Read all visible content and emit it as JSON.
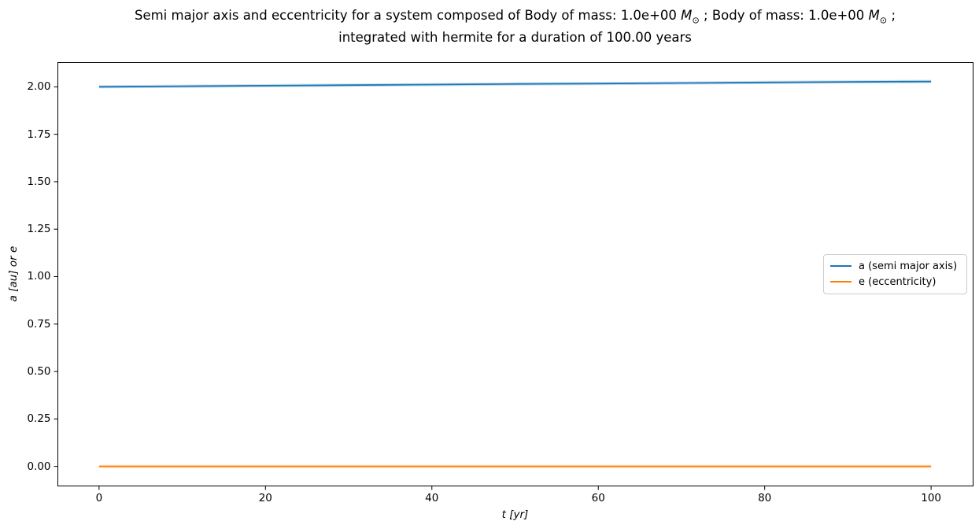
{
  "title": {
    "line1_prefix": "Semi major axis and eccentricity for a system composed of Body of mass: 1.0e+00 ",
    "mass_symbol": "M",
    "sun_subscript": "⊙",
    "line1_middle": " ; Body of mass: 1.0e+00 ",
    "line1_suffix": " ;",
    "line2": "integrated with hermite for a duration of 100.00 years"
  },
  "chart_data": {
    "type": "line",
    "title": "Semi major axis and eccentricity for a system composed of Body of mass: 1.0e+00 M⊙ ; Body of mass: 1.0e+00 M⊙ ; integrated with hermite for a duration of 100.00 years",
    "xlabel": "t [yr]",
    "ylabel": "a [au] or e",
    "xlim": [
      -5,
      105
    ],
    "ylim": [
      -0.101,
      2.13
    ],
    "grid": false,
    "x_ticks": {
      "values": [
        0,
        20,
        40,
        60,
        80,
        100
      ],
      "labels": [
        "0",
        "20",
        "40",
        "60",
        "80",
        "100"
      ]
    },
    "y_ticks": {
      "values": [
        0.0,
        0.25,
        0.5,
        0.75,
        1.0,
        1.25,
        1.5,
        1.75,
        2.0
      ],
      "labels": [
        "0.00",
        "0.25",
        "0.50",
        "0.75",
        "1.00",
        "1.25",
        "1.50",
        "1.75",
        "2.00"
      ]
    },
    "legend": {
      "position": "center right"
    },
    "series": [
      {
        "name": "a (semi major axis)",
        "color": "#1f77b4",
        "x": [
          0,
          10,
          20,
          30,
          40,
          50,
          60,
          70,
          80,
          90,
          100
        ],
        "y": [
          2.0,
          2.003,
          2.006,
          2.009,
          2.012,
          2.015,
          2.017,
          2.02,
          2.023,
          2.026,
          2.028
        ]
      },
      {
        "name": "e (eccentricity)",
        "color": "#ff7f0e",
        "x": [
          0,
          10,
          20,
          30,
          40,
          50,
          60,
          70,
          80,
          90,
          100
        ],
        "y": [
          0.0,
          0.0,
          0.0,
          0.0,
          0.0,
          0.0,
          0.0,
          0.0,
          0.0,
          0.0,
          0.0
        ]
      }
    ]
  }
}
